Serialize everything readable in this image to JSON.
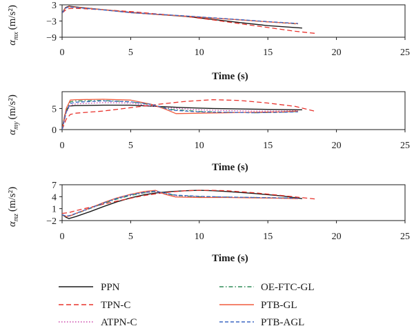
{
  "chart_data": [
    {
      "type": "line",
      "ylabel": "α_mx (m/s²)",
      "ylabel_main": "α",
      "ylabel_sub": "mx",
      "ylabel_unit": "(m/s²)",
      "xlabel": "Time (s)",
      "xlim": [
        0,
        25
      ],
      "ylim": [
        -9,
        3
      ],
      "xticks": [
        "0",
        "5",
        "10",
        "15",
        "20",
        "25"
      ],
      "yticks": [
        "3",
        "−3",
        "−9"
      ],
      "ytick_values": [
        3,
        -3,
        -9
      ],
      "series": [
        {
          "name": "PPN",
          "x": [
            0,
            0.25,
            0.5,
            1,
            3,
            5,
            7,
            9,
            11,
            13,
            15,
            17.5
          ],
          "y": [
            0,
            2.0,
            2.5,
            2.2,
            1.2,
            0.2,
            -0.6,
            -1.3,
            -2.4,
            -3.6,
            -4.7,
            -5.6
          ]
        },
        {
          "name": "TPN-C",
          "x": [
            0,
            0.25,
            0.5,
            1,
            3,
            5,
            7,
            9,
            11,
            13,
            15,
            17,
            18.5
          ],
          "y": [
            0,
            1.0,
            1.6,
            1.7,
            1.2,
            0.5,
            -0.4,
            -1.3,
            -2.6,
            -4.0,
            -5.4,
            -6.8,
            -7.6
          ]
        },
        {
          "name": "ATPN-C",
          "x": [
            0,
            0.25,
            0.5,
            1,
            3,
            5,
            7,
            9,
            11,
            13,
            15,
            17.2
          ],
          "y": [
            0,
            1.8,
            2.2,
            2.1,
            1.2,
            0.2,
            -0.5,
            -1.1,
            -1.9,
            -2.6,
            -3.3,
            -4.0
          ]
        },
        {
          "name": "OE-FTC-GL",
          "x": [
            0,
            0.25,
            0.5,
            1,
            3,
            5,
            7,
            9,
            11,
            13,
            15,
            17.2
          ],
          "y": [
            0,
            1.8,
            2.3,
            2.1,
            1.2,
            0.1,
            -0.6,
            -1.2,
            -1.9,
            -2.6,
            -3.3,
            -4.1
          ]
        },
        {
          "name": "PTB-GL",
          "x": [
            0,
            0.25,
            0.5,
            1,
            3,
            5,
            7,
            9,
            11,
            13,
            15,
            17.2
          ],
          "y": [
            0,
            1.9,
            2.3,
            2.1,
            1.2,
            0.1,
            -0.6,
            -1.2,
            -1.9,
            -2.6,
            -3.3,
            -4.0
          ]
        },
        {
          "name": "PTB-AGL",
          "x": [
            0,
            0.25,
            0.5,
            1,
            3,
            5,
            7,
            9,
            11,
            13,
            15,
            17.2
          ],
          "y": [
            0,
            1.8,
            2.2,
            2.0,
            1.1,
            0.1,
            -0.5,
            -1.1,
            -1.8,
            -2.5,
            -3.2,
            -3.9
          ]
        }
      ]
    },
    {
      "type": "line",
      "ylabel": "α_my (m/s²)",
      "ylabel_main": "α",
      "ylabel_sub": "my",
      "ylabel_unit": "(m/s²)",
      "xlabel": "Time (s)",
      "xlim": [
        0,
        25
      ],
      "ylim": [
        0,
        9
      ],
      "xticks": [
        "0",
        "5",
        "10",
        "15",
        "20",
        "25"
      ],
      "yticks": [
        "0",
        "5"
      ],
      "ytick_values": [
        0,
        5
      ],
      "series": [
        {
          "name": "PPN",
          "x": [
            0,
            0.2,
            0.5,
            1,
            3,
            5,
            7,
            9,
            11,
            13,
            15,
            17.5
          ],
          "y": [
            0,
            3.5,
            5.6,
            5.7,
            5.8,
            5.8,
            5.5,
            5.2,
            5.0,
            4.9,
            4.8,
            4.7
          ]
        },
        {
          "name": "TPN-C",
          "x": [
            0,
            0.3,
            0.6,
            1,
            3,
            5,
            7,
            9,
            11,
            13,
            15,
            17,
            18.5
          ],
          "y": [
            0,
            2.5,
            3.6,
            3.9,
            4.4,
            5.2,
            6.0,
            6.7,
            7.1,
            6.9,
            6.3,
            5.5,
            4.3
          ]
        },
        {
          "name": "ATPN-C",
          "x": [
            0,
            0.3,
            0.6,
            1,
            3,
            5,
            6.5,
            8,
            10,
            12,
            14,
            16,
            17.2
          ],
          "y": [
            0,
            4.0,
            5.8,
            6.1,
            6.4,
            6.3,
            5.6,
            5.1,
            4.7,
            4.5,
            4.4,
            4.4,
            4.5
          ]
        },
        {
          "name": "OE-FTC-GL",
          "x": [
            0,
            0.3,
            0.6,
            1,
            3,
            5,
            6.5,
            8,
            10,
            12,
            14,
            16,
            17.2
          ],
          "y": [
            0,
            4.5,
            6.6,
            6.8,
            6.9,
            6.6,
            5.9,
            4.8,
            4.3,
            4.1,
            4.0,
            4.1,
            4.3
          ]
        },
        {
          "name": "PTB-GL",
          "x": [
            0,
            0.3,
            0.6,
            1,
            3,
            5,
            6.5,
            7.5,
            8.3,
            10,
            12,
            14,
            16,
            17.2
          ],
          "y": [
            0,
            5.0,
            7.0,
            7.1,
            7.2,
            7.0,
            6.0,
            4.9,
            3.8,
            3.9,
            4.0,
            4.1,
            4.2,
            4.4
          ]
        },
        {
          "name": "PTB-AGL",
          "x": [
            0,
            0.3,
            0.6,
            1,
            3,
            5,
            6.5,
            8,
            10,
            12,
            14,
            16,
            17.2
          ],
          "y": [
            0,
            4.2,
            6.2,
            6.5,
            6.8,
            6.6,
            6.0,
            4.6,
            4.2,
            4.1,
            4.0,
            4.1,
            4.2
          ]
        }
      ]
    },
    {
      "type": "line",
      "ylabel": "α_mz (m/s²)",
      "ylabel_main": "α",
      "ylabel_sub": "mz",
      "ylabel_unit": "(m/s²)",
      "xlabel": "Time (s)",
      "xlim": [
        0,
        25
      ],
      "ylim": [
        -2,
        7
      ],
      "xticks": [
        "0",
        "5",
        "10",
        "15",
        "20",
        "25"
      ],
      "yticks": [
        "7",
        "4",
        "1",
        "−2"
      ],
      "ytick_values": [
        7,
        4,
        1,
        -2
      ],
      "series": [
        {
          "name": "PPN",
          "x": [
            0,
            0.3,
            0.5,
            1,
            2,
            3,
            4,
            5,
            6,
            7,
            8,
            9,
            10,
            11,
            12,
            14,
            16,
            17.5
          ],
          "y": [
            -0.5,
            -1.2,
            -1.5,
            -1.0,
            0.2,
            1.5,
            2.7,
            3.7,
            4.5,
            5.0,
            5.3,
            5.5,
            5.6,
            5.5,
            5.3,
            4.8,
            4.2,
            3.5
          ]
        },
        {
          "name": "TPN-C",
          "x": [
            0,
            0.5,
            1,
            2,
            3,
            4,
            5,
            6,
            7,
            8,
            9,
            10,
            11,
            12,
            14,
            16,
            18.5
          ],
          "y": [
            -0.2,
            0.0,
            0.5,
            1.3,
            2.1,
            2.9,
            3.6,
            4.3,
            4.8,
            5.2,
            5.5,
            5.6,
            5.6,
            5.5,
            5.0,
            4.3,
            3.4
          ]
        },
        {
          "name": "ATPN-C",
          "x": [
            0,
            0.3,
            0.6,
            1,
            2,
            3,
            4,
            5,
            6,
            6.8,
            7.5,
            8.3,
            10,
            12,
            14,
            16,
            17.2
          ],
          "y": [
            -0.5,
            -0.9,
            -0.7,
            -0.2,
            1.0,
            2.3,
            3.5,
            4.4,
            5.0,
            5.2,
            4.7,
            4.2,
            4.0,
            3.9,
            3.8,
            3.6,
            3.5
          ]
        },
        {
          "name": "OE-FTC-GL",
          "x": [
            0,
            0.3,
            0.6,
            1,
            2,
            3,
            4,
            5,
            6,
            6.8,
            7.5,
            8.3,
            10,
            12,
            14,
            16,
            17.2
          ],
          "y": [
            -0.5,
            -1.0,
            -0.8,
            -0.3,
            1.0,
            2.3,
            3.4,
            4.3,
            5.0,
            5.3,
            4.8,
            4.3,
            4.0,
            3.9,
            3.8,
            3.7,
            3.6
          ]
        },
        {
          "name": "PTB-GL",
          "x": [
            0,
            0.3,
            0.6,
            1,
            2,
            3,
            4,
            5,
            6,
            6.8,
            7.5,
            8.3,
            10,
            12,
            14,
            16,
            17.2
          ],
          "y": [
            -0.5,
            -1.0,
            -0.8,
            -0.2,
            1.1,
            2.5,
            3.7,
            4.6,
            5.3,
            5.6,
            4.6,
            3.9,
            3.8,
            3.8,
            3.7,
            3.6,
            3.5
          ]
        },
        {
          "name": "PTB-AGL",
          "x": [
            0,
            0.3,
            0.6,
            1,
            2,
            3,
            4,
            5,
            6,
            6.8,
            7.5,
            8.3,
            10,
            12,
            14,
            16,
            17.2
          ],
          "y": [
            -0.5,
            -0.9,
            -0.7,
            -0.2,
            1.1,
            2.4,
            3.6,
            4.5,
            5.1,
            5.4,
            4.9,
            4.4,
            4.1,
            3.9,
            3.8,
            3.7,
            3.6
          ]
        }
      ]
    }
  ],
  "legend": {
    "items": [
      {
        "label": "PPN",
        "color": "#1a1a1a",
        "dash": "solid",
        "width": 1.4
      },
      {
        "label": "TPN-C",
        "color": "#e8302a",
        "dash": "long-dash",
        "width": 1.3
      },
      {
        "label": "ATPN-C",
        "color": "#cc44aa",
        "dash": "dotted",
        "width": 1.3
      },
      {
        "label": "OE-FTC-GL",
        "color": "#2e8b57",
        "dash": "dash-dot",
        "width": 1.3
      },
      {
        "label": "PTB-GL",
        "color": "#f05a3c",
        "dash": "solid",
        "width": 1.3
      },
      {
        "label": "PTB-AGL",
        "color": "#3a66c4",
        "dash": "dashed",
        "width": 1.3
      }
    ]
  }
}
